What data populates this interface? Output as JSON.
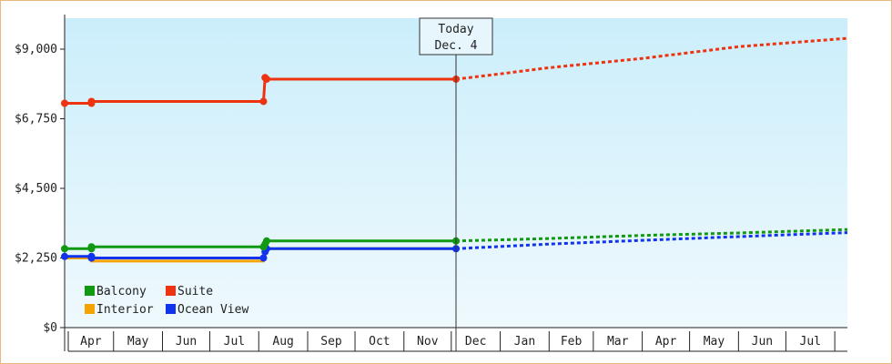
{
  "chart_data": {
    "type": "line",
    "title": "",
    "xlabel": "",
    "ylabel": "",
    "ylim": [
      0,
      10000
    ],
    "y_ticks": [
      {
        "value": 0,
        "label": "$0"
      },
      {
        "value": 2250,
        "label": "$2,250"
      },
      {
        "value": 4500,
        "label": "$4,500"
      },
      {
        "value": 6750,
        "label": "$6,750"
      },
      {
        "value": 9000,
        "label": "$9,000"
      }
    ],
    "months": [
      "Apr",
      "May",
      "Jun",
      "Jul",
      "Aug",
      "Sep",
      "Oct",
      "Nov",
      "Dec",
      "Jan",
      "Feb",
      "Mar",
      "Apr",
      "May",
      "Jun",
      "Jul"
    ],
    "x_domain": [
      "2025-03-31",
      "2026-08-09"
    ],
    "grid": false,
    "legend_position": "bottom-left",
    "today": {
      "line1": "Today",
      "line2": "Dec. 4",
      "date": "2025-12-04"
    },
    "background_gradient": [
      "#cbeefb",
      "#eff9fd"
    ],
    "series": [
      {
        "name": "Balcony",
        "color": "#119911",
        "history": [
          {
            "x": "2025-03-31",
            "y": 2550
          },
          {
            "x": "2025-04-17",
            "y": 2550
          },
          {
            "x": "2025-04-17",
            "y": 2610
          },
          {
            "x": "2025-08-04",
            "y": 2610
          },
          {
            "x": "2025-08-05",
            "y": 2700
          },
          {
            "x": "2025-08-06",
            "y": 2800
          },
          {
            "x": "2025-12-04",
            "y": 2800
          }
        ],
        "markers": [
          {
            "x": "2025-03-31",
            "y": 2550
          },
          {
            "x": "2025-04-17",
            "y": 2550
          },
          {
            "x": "2025-04-17",
            "y": 2610
          },
          {
            "x": "2025-08-04",
            "y": 2610
          },
          {
            "x": "2025-08-05",
            "y": 2700
          },
          {
            "x": "2025-08-06",
            "y": 2800
          },
          {
            "x": "2025-12-04",
            "y": 2800
          }
        ],
        "forecast": [
          {
            "x": "2025-12-04",
            "y": 2800
          },
          {
            "x": "2026-02-01",
            "y": 2880
          },
          {
            "x": "2026-04-01",
            "y": 2980
          },
          {
            "x": "2026-06-01",
            "y": 3060
          },
          {
            "x": "2026-08-09",
            "y": 3170
          }
        ]
      },
      {
        "name": "Suite",
        "color": "#ee3311",
        "history": [
          {
            "x": "2025-03-31",
            "y": 7250
          },
          {
            "x": "2025-04-17",
            "y": 7250
          },
          {
            "x": "2025-04-17",
            "y": 7310
          },
          {
            "x": "2025-08-04",
            "y": 7310
          },
          {
            "x": "2025-08-05",
            "y": 8080
          },
          {
            "x": "2025-08-06",
            "y": 8030
          },
          {
            "x": "2025-12-04",
            "y": 8030
          }
        ],
        "markers": [
          {
            "x": "2025-03-31",
            "y": 7250
          },
          {
            "x": "2025-04-17",
            "y": 7250
          },
          {
            "x": "2025-04-17",
            "y": 7310
          },
          {
            "x": "2025-08-04",
            "y": 7310
          },
          {
            "x": "2025-08-05",
            "y": 8080
          },
          {
            "x": "2025-08-06",
            "y": 8030
          },
          {
            "x": "2025-12-04",
            "y": 8030
          }
        ],
        "forecast": [
          {
            "x": "2025-12-04",
            "y": 8030
          },
          {
            "x": "2026-01-01",
            "y": 8200
          },
          {
            "x": "2026-02-01",
            "y": 8400
          },
          {
            "x": "2026-04-01",
            "y": 8700
          },
          {
            "x": "2026-06-01",
            "y": 9080
          },
          {
            "x": "2026-08-09",
            "y": 9350
          }
        ]
      },
      {
        "name": "Interior",
        "color": "#f5a300",
        "history": [
          {
            "x": "2025-03-31",
            "y": 2250
          },
          {
            "x": "2025-04-17",
            "y": 2250
          },
          {
            "x": "2025-04-17",
            "y": 2150
          },
          {
            "x": "2025-08-04",
            "y": 2150
          },
          {
            "x": "2025-08-05",
            "y": 2450
          },
          {
            "x": "2025-08-06",
            "y": 2550
          },
          {
            "x": "2025-12-04",
            "y": 2550
          }
        ],
        "markers": [],
        "forecast": []
      },
      {
        "name": "Ocean View",
        "color": "#1133ee",
        "history": [
          {
            "x": "2025-03-31",
            "y": 2300
          },
          {
            "x": "2025-04-17",
            "y": 2300
          },
          {
            "x": "2025-04-17",
            "y": 2250
          },
          {
            "x": "2025-08-04",
            "y": 2250
          },
          {
            "x": "2025-08-05",
            "y": 2450
          },
          {
            "x": "2025-08-06",
            "y": 2550
          },
          {
            "x": "2025-12-04",
            "y": 2550
          }
        ],
        "markers": [
          {
            "x": "2025-03-31",
            "y": 2300
          },
          {
            "x": "2025-04-17",
            "y": 2300
          },
          {
            "x": "2025-04-17",
            "y": 2250
          },
          {
            "x": "2025-08-04",
            "y": 2250
          },
          {
            "x": "2025-08-05",
            "y": 2450
          },
          {
            "x": "2025-08-06",
            "y": 2550
          },
          {
            "x": "2025-12-04",
            "y": 2550
          }
        ],
        "forecast": [
          {
            "x": "2025-12-04",
            "y": 2550
          },
          {
            "x": "2026-02-01",
            "y": 2700
          },
          {
            "x": "2026-04-01",
            "y": 2820
          },
          {
            "x": "2026-06-01",
            "y": 2940
          },
          {
            "x": "2026-08-09",
            "y": 3070
          }
        ]
      }
    ],
    "legend_order": [
      "Balcony",
      "Suite",
      "Interior",
      "Ocean View"
    ]
  }
}
